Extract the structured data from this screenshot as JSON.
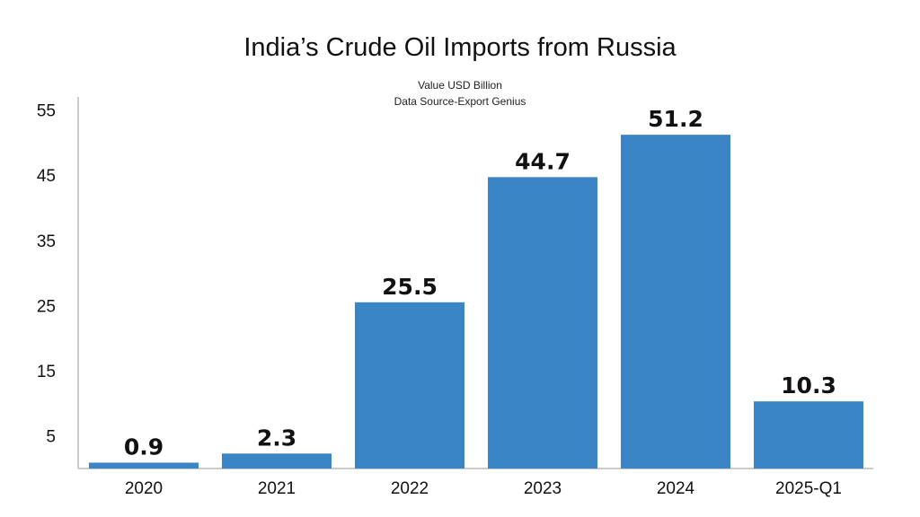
{
  "chart_data": {
    "type": "bar",
    "title": "India’s Crude Oil Imports from Russia",
    "subtitle_lines": [
      "Value USD Billion",
      "Data Source-Export Genius"
    ],
    "categories": [
      "2020",
      "2021",
      "2022",
      "2023",
      "2024",
      "2025-Q1"
    ],
    "values": [
      0.9,
      2.3,
      25.5,
      44.7,
      51.2,
      10.3
    ],
    "value_labels": [
      "0.9",
      "2.3",
      "25.5",
      "44.7",
      "51.2",
      "10.3"
    ],
    "y_ticks": [
      5,
      15,
      25,
      35,
      45,
      55
    ],
    "ylim": [
      0,
      57
    ],
    "xlabel": "",
    "ylabel": "",
    "grid": false,
    "bar_color": "#3b84c6",
    "axis_color": "#bbbbbb"
  }
}
